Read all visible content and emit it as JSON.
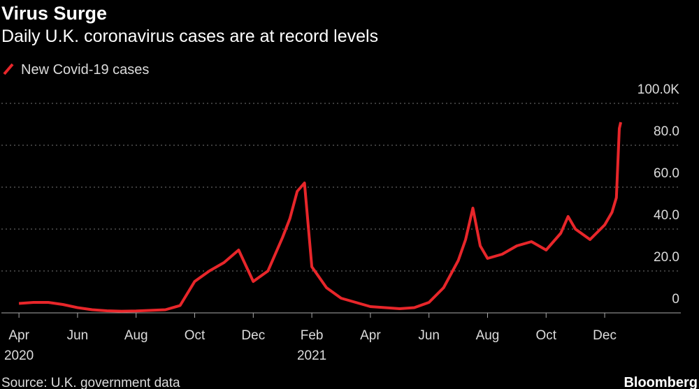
{
  "chart_data": {
    "type": "line",
    "title": "Virus Surge",
    "subtitle": "Daily U.K. coronavirus cases are at record levels",
    "source": "Source: U.K. government data",
    "brand": "Bloomberg",
    "legend_position": "top-left",
    "grid": true,
    "x": [
      0,
      0.5,
      1,
      1.5,
      2,
      2.5,
      3,
      3.5,
      4,
      4.5,
      5,
      5.5,
      6,
      6.5,
      7,
      7.5,
      8,
      8.5,
      9,
      9.25,
      9.5,
      9.75,
      10,
      10.5,
      11,
      11.5,
      12,
      12.5,
      13,
      13.5,
      14,
      14.5,
      15,
      15.25,
      15.5,
      15.75,
      16,
      16.5,
      17,
      17.5,
      18,
      18.5,
      18.75,
      19,
      19.5,
      20,
      20.25,
      20.4,
      20.5,
      20.55
    ],
    "series": [
      {
        "name": "New Covid-19 cases",
        "color": "#e8262a",
        "values": [
          4.5,
          5,
          5,
          4,
          2.5,
          1.5,
          1,
          0.8,
          0.9,
          1.2,
          1.5,
          3.5,
          15,
          20,
          24,
          30,
          15,
          20,
          36,
          45,
          58,
          62,
          22,
          12,
          7,
          5,
          3,
          2.5,
          2,
          2.5,
          5,
          12,
          25,
          35,
          50,
          32,
          26,
          28,
          32,
          34,
          30,
          38,
          46,
          40,
          35,
          42,
          48,
          55,
          88,
          91
        ]
      }
    ],
    "xlim": [
      -0.6,
      22.6
    ],
    "xticks": [
      {
        "value": 0,
        "label": "Apr"
      },
      {
        "value": 2,
        "label": "Jun"
      },
      {
        "value": 4,
        "label": "Aug"
      },
      {
        "value": 6,
        "label": "Oct"
      },
      {
        "value": 8,
        "label": "Dec"
      },
      {
        "value": 10,
        "label": "Feb"
      },
      {
        "value": 12,
        "label": "Apr"
      },
      {
        "value": 14,
        "label": "Jun"
      },
      {
        "value": 16,
        "label": "Aug"
      },
      {
        "value": 18,
        "label": "Oct"
      },
      {
        "value": 20,
        "label": "Dec"
      }
    ],
    "xtick_years": [
      {
        "value": 0,
        "label": "2020"
      },
      {
        "value": 10,
        "label": "2021"
      }
    ],
    "ylim": [
      0,
      106
    ],
    "yticks": [
      0,
      {
        "value": 20,
        "label": "20.0"
      },
      {
        "value": 40,
        "label": "40.0"
      },
      {
        "value": 60,
        "label": "60.0"
      },
      {
        "value": 80,
        "label": "80.0"
      },
      {
        "value": 100,
        "label": "100.0K"
      }
    ]
  }
}
